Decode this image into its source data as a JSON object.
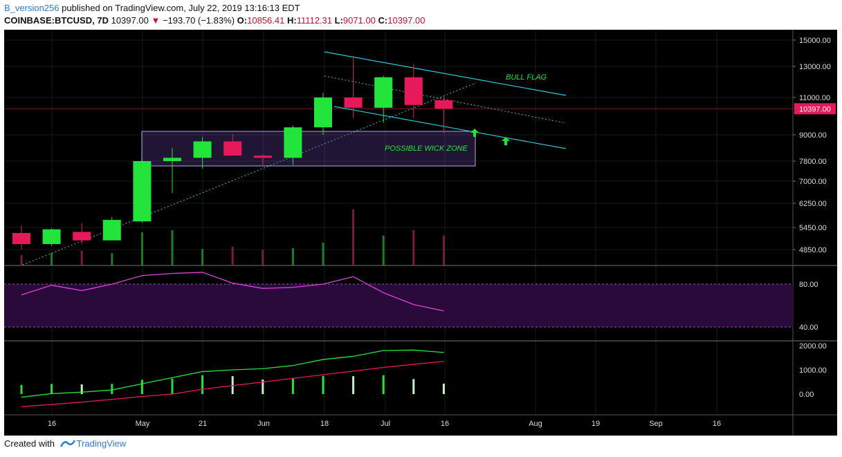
{
  "header": {
    "user": "B_version256",
    "published": "published on TradingView.com, July 22, 2019 13:16:13 EDT"
  },
  "symbol_bar": {
    "symbol": "COINBASE:BTCUSD, 7D",
    "price": "10397.00",
    "change": "−193.70 (−1.83%)",
    "o_label": "O:",
    "o": "10856.41",
    "h_label": "H:",
    "h": "11112.31",
    "l_label": "L:",
    "l": "9071.00",
    "c_label": "C:",
    "c": "10397.00"
  },
  "footer": {
    "created_with": "Created with",
    "brand": "TradingView"
  },
  "colors": {
    "background": "#000000",
    "up": "#22e43a",
    "down": "#e8195a",
    "channel": "#28c9d8",
    "rsi_line": "#e040e0",
    "rsi_band": "#2a0a3a",
    "wick_zone": "#6a4aa8",
    "annotation": "#22e43a",
    "macd_line": "#22e43a",
    "signal_line": "#e8195a"
  },
  "chart_data": {
    "type": "candlestick",
    "timeframe": "7D",
    "price_axis_ticks": [
      "15000.00",
      "13000.00",
      "11000.00",
      "9000.00",
      "7800.00",
      "7000.00",
      "6250.00",
      "5450.00",
      "4850.00"
    ],
    "last_price_label": "10397.00",
    "x_tick_labels": [
      "16",
      "May",
      "21",
      "Jun",
      "18",
      "Jul",
      "16",
      "Aug",
      "19",
      "Sep",
      "16"
    ],
    "candles": [
      {
        "o": 5300,
        "h": 5520,
        "l": 4850,
        "c": 5000
      },
      {
        "o": 5000,
        "h": 5430,
        "l": 4950,
        "c": 5400
      },
      {
        "o": 5330,
        "h": 5600,
        "l": 5000,
        "c": 5100
      },
      {
        "o": 5100,
        "h": 5800,
        "l": 5100,
        "c": 5700
      },
      {
        "o": 5650,
        "h": 7900,
        "l": 5600,
        "c": 7800
      },
      {
        "o": 7800,
        "h": 8400,
        "l": 6600,
        "c": 7950
      },
      {
        "o": 7950,
        "h": 8900,
        "l": 7500,
        "c": 8700
      },
      {
        "o": 8700,
        "h": 9050,
        "l": 8100,
        "c": 8050
      },
      {
        "o": 8050,
        "h": 8100,
        "l": 7600,
        "c": 7950
      },
      {
        "o": 7950,
        "h": 9500,
        "l": 7650,
        "c": 9400
      },
      {
        "o": 9400,
        "h": 11300,
        "l": 9000,
        "c": 11000
      },
      {
        "o": 11000,
        "h": 13800,
        "l": 9900,
        "c": 10450
      },
      {
        "o": 10450,
        "h": 12400,
        "l": 9650,
        "c": 12300
      },
      {
        "o": 12300,
        "h": 13200,
        "l": 9900,
        "c": 10600
      },
      {
        "o": 10856.41,
        "h": 11112.31,
        "l": 9071,
        "c": 10397
      }
    ],
    "volume": [
      0.25,
      0.3,
      0.35,
      0.3,
      0.8,
      0.85,
      0.4,
      0.45,
      0.38,
      0.42,
      0.55,
      1.35,
      0.72,
      0.85,
      0.72
    ],
    "rsi": {
      "levels": [
        80.0,
        40.0
      ],
      "tick_labels": [
        "80.00",
        "40.00"
      ],
      "values": [
        70,
        79,
        74,
        80,
        88,
        90,
        91,
        81,
        76,
        77,
        80,
        87,
        72,
        61,
        55
      ]
    },
    "macd": {
      "tick_labels": [
        "2000.00",
        "1000.00",
        "0.00"
      ],
      "macd": [
        -130,
        20,
        80,
        170,
        430,
        680,
        930,
        1000,
        1050,
        1180,
        1430,
        1560,
        1800,
        1820,
        1720
      ],
      "signal": [
        -520,
        -430,
        -330,
        -220,
        -100,
        0,
        200,
        350,
        500,
        650,
        800,
        950,
        1100,
        1230,
        1350
      ],
      "histogram": [
        380,
        420,
        400,
        420,
        590,
        640,
        780,
        740,
        600,
        640,
        750,
        740,
        780,
        620,
        430
      ]
    },
    "annotations": [
      "BULL FLAG",
      "POSSIBLE WICK ZONE"
    ]
  }
}
